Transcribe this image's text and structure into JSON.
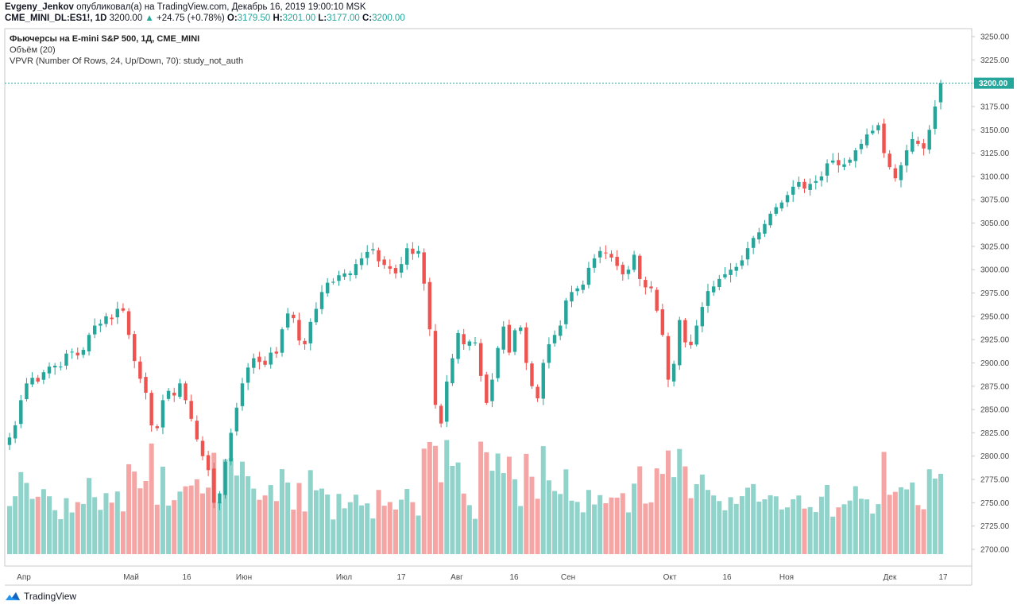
{
  "header": {
    "author": "Evgeny_Jenkov",
    "published_text": "опубликовал(а) на TradingView.com, Декабрь 16, 2019 19:00:10 MSK",
    "symbol": "CME_MINI_DL:ES1!, 1D",
    "last": "3200.00",
    "change": "+24.75 (+0.78%)",
    "o_label": "O:",
    "o": "3179.50",
    "h_label": "H:",
    "h": "3201.00",
    "l_label": "L:",
    "l": "3177.00",
    "c_label": "C:",
    "c": "3200.00"
  },
  "legend": {
    "title": "Фьючерсы на E-mini S&P 500, 1Д, CME_MINI",
    "volume": "Объём (20)",
    "vpvr": "VPVR (Number Of Rows, 24, Up/Down, 70): study_not_auth"
  },
  "footer": {
    "brand": "TradingView",
    "logo_icon": "tradingview-logo-icon"
  },
  "colors": {
    "up": "#26a69a",
    "down": "#ef5350",
    "vol_up": "#8fd3ca",
    "vol_down": "#f4a5a4",
    "price_line": "#26a69a"
  },
  "chart_data": {
    "type": "candlestick",
    "y_axis_ticks": [
      "3250.00",
      "3225.00",
      "3200.00",
      "3175.00",
      "3150.00",
      "3125.00",
      "3100.00",
      "3075.00",
      "3050.00",
      "3025.00",
      "3000.00",
      "2975.00",
      "2950.00",
      "2925.00",
      "2900.00",
      "2875.00",
      "2850.00",
      "2825.00",
      "2800.00",
      "2775.00",
      "2750.00",
      "2725.00",
      "2700.00"
    ],
    "ylim": [
      2680,
      3260
    ],
    "x_axis_ticks": [
      "Апр",
      "Май",
      "16",
      "Июн",
      "Июл",
      "17",
      "Авг",
      "16",
      "Сен",
      "Окт",
      "16",
      "Ноя",
      "Дек",
      "17"
    ],
    "last_price_label": "3200.00",
    "close": [
      2820,
      2833,
      2860,
      2878,
      2884,
      2880,
      2890,
      2896,
      2897,
      2896,
      2910,
      2912,
      2908,
      2914,
      2930,
      2940,
      2942,
      2950,
      2947,
      2958,
      2956,
      2930,
      2902,
      2883,
      2868,
      2833,
      2830,
      2860,
      2870,
      2865,
      2878,
      2860,
      2840,
      2818,
      2800,
      2785,
      2750,
      2760,
      2794,
      2825,
      2852,
      2878,
      2895,
      2905,
      2901,
      2898,
      2911,
      2910,
      2936,
      2953,
      2948,
      2924,
      2920,
      2944,
      2958,
      2976,
      2986,
      2987,
      2994,
      2996,
      2996,
      3006,
      3012,
      3019,
      3022,
      3009,
      3005,
      3001,
      2996,
      3006,
      3023,
      3017,
      3020,
      2985,
      2936,
      2855,
      2835,
      2880,
      2905,
      2932,
      2920,
      2923,
      2922,
      2886,
      2857,
      2882,
      2916,
      2939,
      2911,
      2935,
      2938,
      2900,
      2875,
      2862,
      2900,
      2920,
      2930,
      2940,
      2967,
      2976,
      2980,
      2984,
      3002,
      3012,
      3020,
      3018,
      3013,
      3004,
      2995,
      3000,
      3016,
      2990,
      2981,
      2980,
      2956,
      2930,
      2882,
      2899,
      2946,
      2922,
      2919,
      2940,
      2960,
      2977,
      2982,
      2990,
      2995,
      3000,
      3003,
      3010,
      3023,
      3034,
      3040,
      3049,
      3060,
      3067,
      3072,
      3080,
      3089,
      3094,
      3087,
      3092,
      3095,
      3100,
      3114,
      3117,
      3112,
      3113,
      3118,
      3128,
      3135,
      3145,
      3149,
      3155,
      3125,
      3110,
      3098,
      3112,
      3128,
      3140,
      3135,
      3130,
      3150,
      3175,
      3200
    ],
    "volume_visual_scale": "relative bar heights, no printed values"
  }
}
